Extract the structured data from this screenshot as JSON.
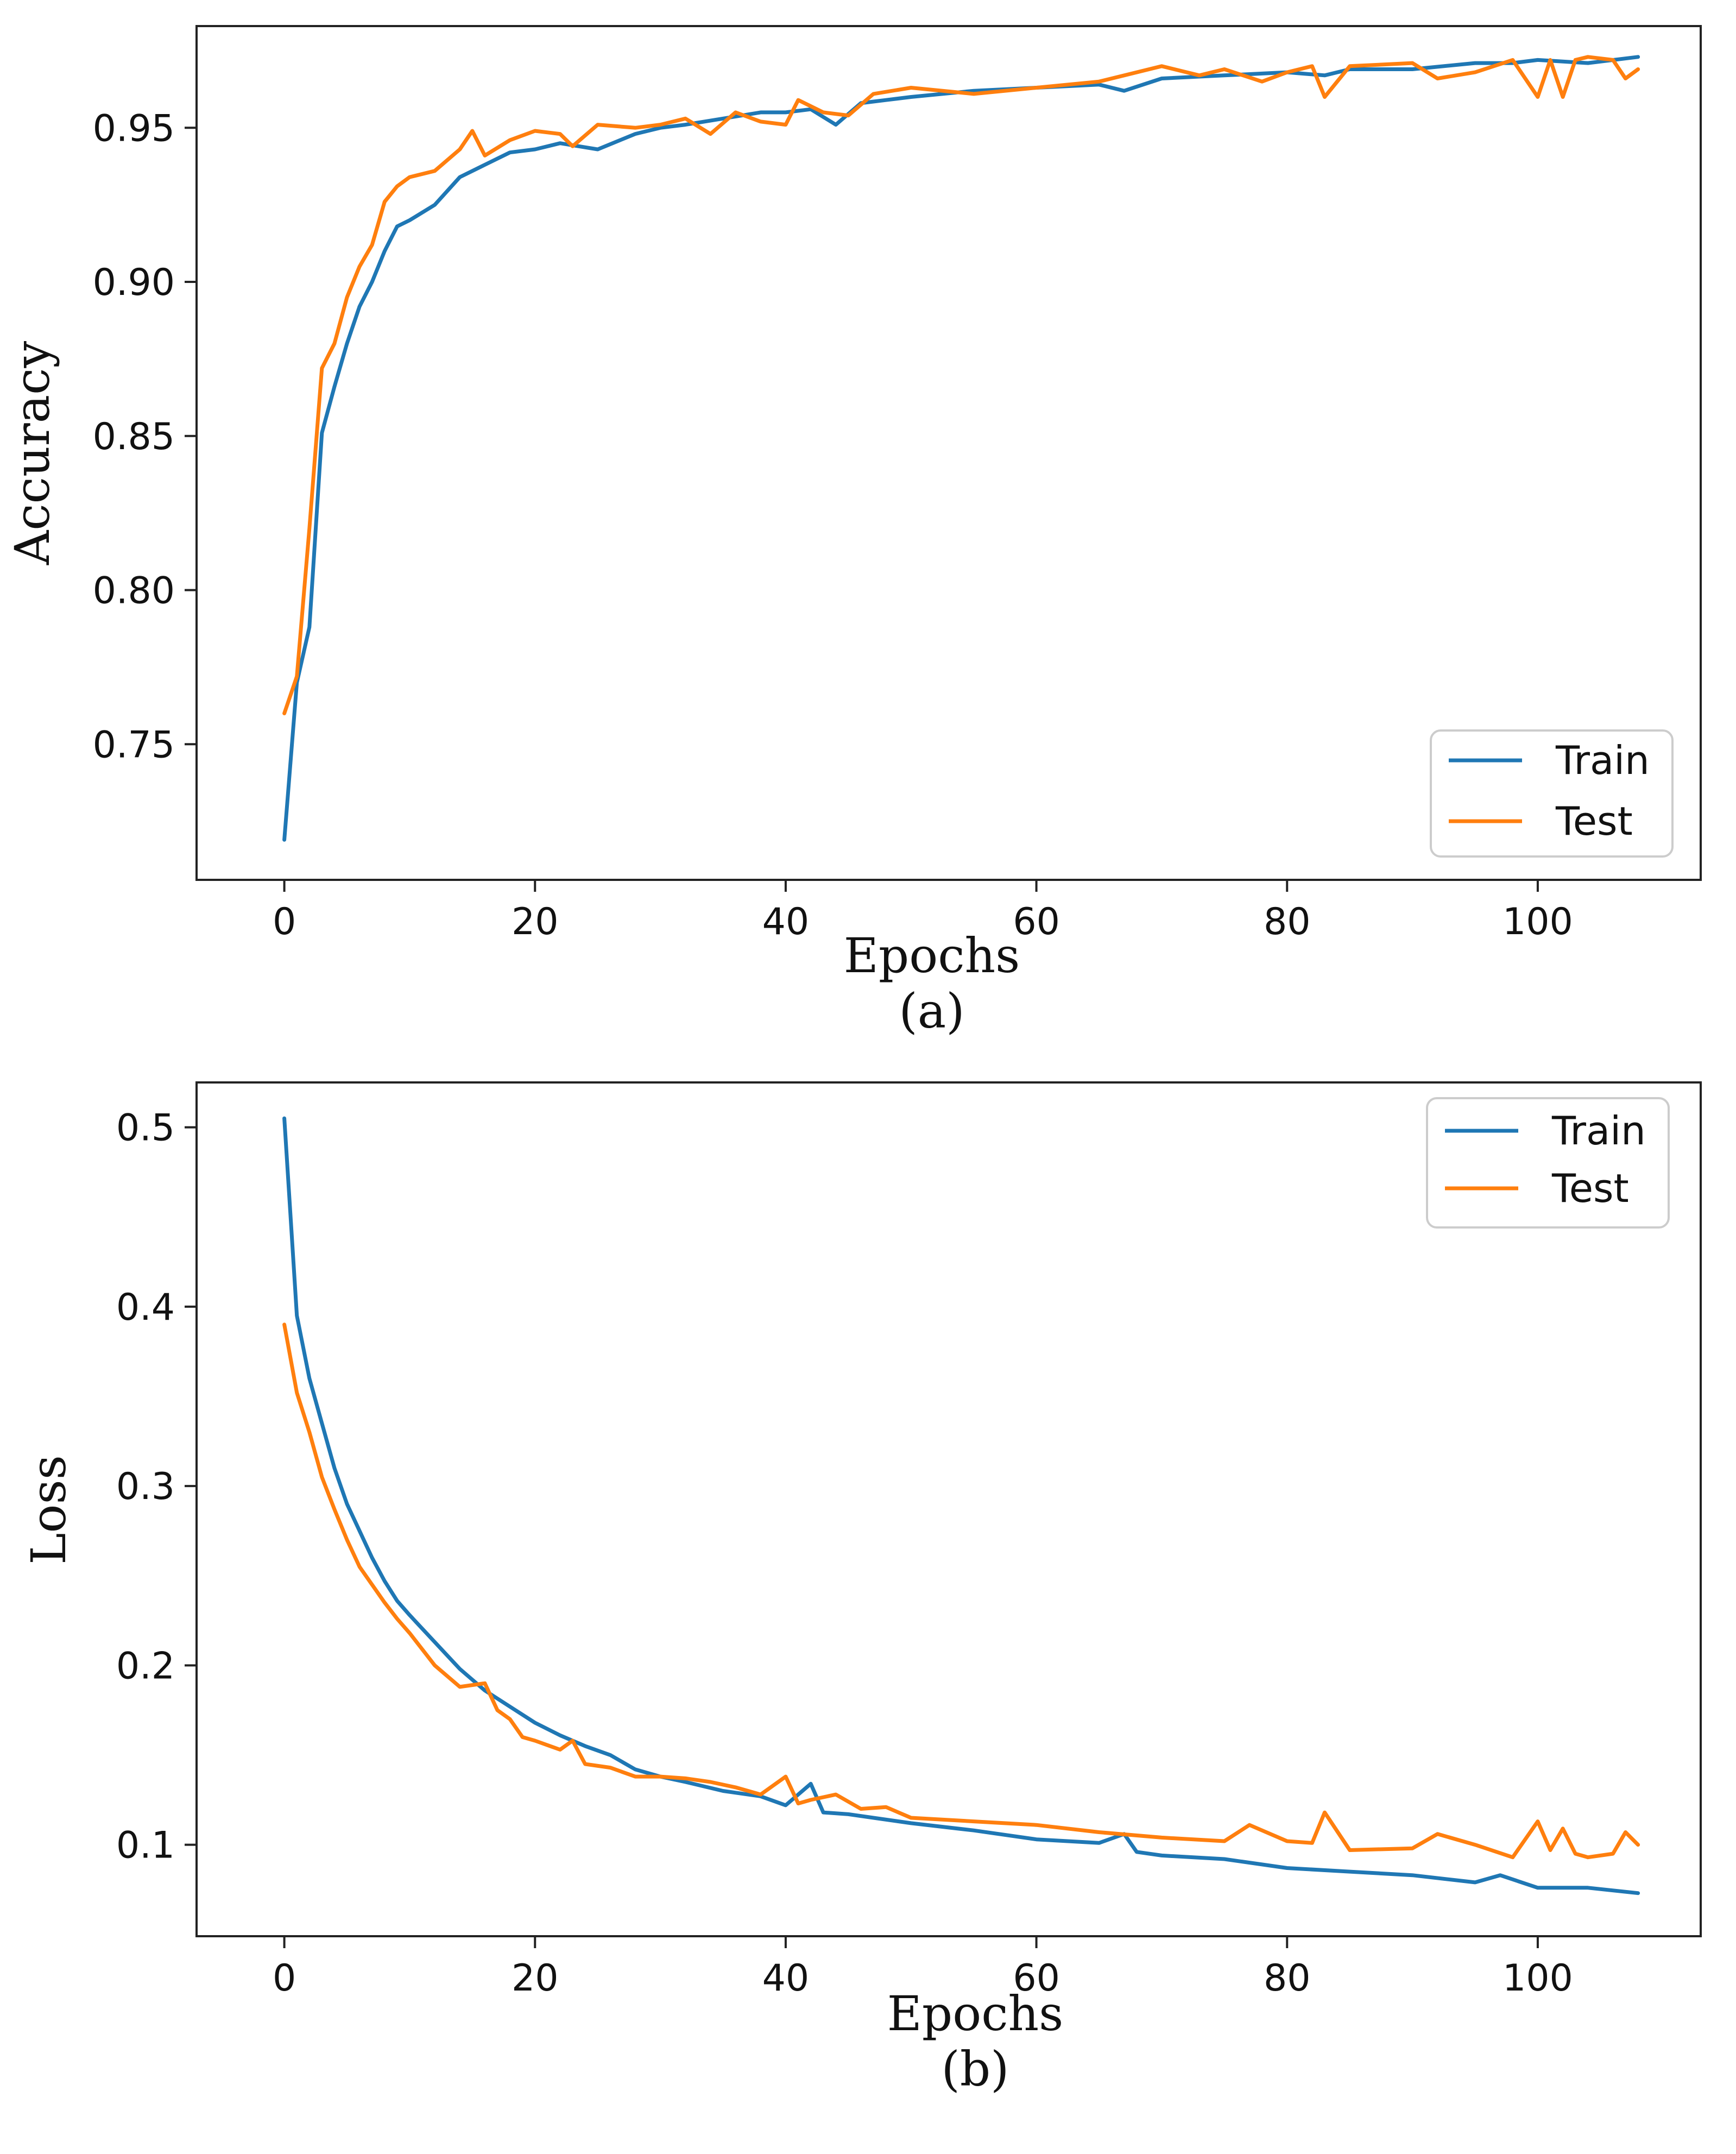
{
  "colors": {
    "train": "#1f77b4",
    "test": "#ff7f0e"
  },
  "chart_data": [
    {
      "type": "line",
      "panel": "a",
      "caption": "(a)",
      "title": "",
      "xlabel": "Epochs",
      "ylabel": "Accuracy",
      "xlim": [
        -7,
        113
      ],
      "ylim": [
        0.706,
        0.983
      ],
      "xticks": [
        0,
        20,
        40,
        60,
        80,
        100
      ],
      "xtick_labels": [
        "0",
        "20",
        "40",
        "60",
        "80",
        "100"
      ],
      "yticks": [
        0.75,
        0.8,
        0.85,
        0.9,
        0.95
      ],
      "ytick_labels": [
        "0.75",
        "0.80",
        "0.85",
        "0.90",
        "0.95"
      ],
      "legend_position": "bottom-right",
      "series": [
        {
          "name": "Train",
          "color_key": "train",
          "x": [
            0,
            1,
            2,
            3,
            4,
            5,
            6,
            7,
            8,
            9,
            10,
            12,
            14,
            16,
            18,
            20,
            22,
            25,
            28,
            30,
            32,
            35,
            38,
            40,
            42,
            44,
            46,
            48,
            50,
            55,
            60,
            65,
            67,
            70,
            75,
            80,
            83,
            85,
            90,
            95,
            98,
            100,
            104,
            108
          ],
          "values": [
            0.719,
            0.77,
            0.788,
            0.851,
            0.866,
            0.88,
            0.892,
            0.9,
            0.91,
            0.918,
            0.92,
            0.925,
            0.934,
            0.938,
            0.942,
            0.943,
            0.945,
            0.943,
            0.948,
            0.95,
            0.951,
            0.953,
            0.955,
            0.955,
            0.956,
            0.951,
            0.958,
            0.959,
            0.96,
            0.962,
            0.963,
            0.964,
            0.962,
            0.966,
            0.967,
            0.968,
            0.967,
            0.969,
            0.969,
            0.971,
            0.971,
            0.972,
            0.971,
            0.973
          ]
        },
        {
          "name": "Test",
          "color_key": "test",
          "x": [
            0,
            1,
            2,
            3,
            4,
            5,
            6,
            7,
            8,
            9,
            10,
            12,
            14,
            15,
            16,
            18,
            20,
            22,
            23,
            25,
            28,
            30,
            32,
            34,
            36,
            38,
            40,
            41,
            43,
            45,
            47,
            50,
            55,
            60,
            65,
            70,
            73,
            75,
            78,
            80,
            82,
            83,
            85,
            90,
            92,
            95,
            98,
            100,
            101,
            102,
            103,
            104,
            106,
            107,
            108
          ],
          "values": [
            0.76,
            0.772,
            0.82,
            0.872,
            0.88,
            0.895,
            0.905,
            0.912,
            0.926,
            0.931,
            0.934,
            0.936,
            0.943,
            0.949,
            0.941,
            0.946,
            0.949,
            0.948,
            0.944,
            0.951,
            0.95,
            0.951,
            0.953,
            0.948,
            0.955,
            0.952,
            0.951,
            0.959,
            0.955,
            0.954,
            0.961,
            0.963,
            0.961,
            0.963,
            0.965,
            0.97,
            0.967,
            0.969,
            0.965,
            0.968,
            0.97,
            0.96,
            0.97,
            0.971,
            0.966,
            0.968,
            0.972,
            0.96,
            0.972,
            0.96,
            0.972,
            0.973,
            0.972,
            0.966,
            0.969
          ]
        }
      ]
    },
    {
      "type": "line",
      "panel": "b",
      "caption": "(b)",
      "title": "",
      "xlabel": "Epochs",
      "ylabel": "Loss",
      "xlim": [
        -7,
        113
      ],
      "ylim": [
        0.049,
        0.525
      ],
      "xticks": [
        0,
        20,
        40,
        60,
        80,
        100
      ],
      "xtick_labels": [
        "0",
        "20",
        "40",
        "60",
        "80",
        "100"
      ],
      "yticks": [
        0.1,
        0.2,
        0.3,
        0.4,
        0.5
      ],
      "ytick_labels": [
        "0.1",
        "0.2",
        "0.3",
        "0.4",
        "0.5"
      ],
      "legend_position": "top-right",
      "series": [
        {
          "name": "Train",
          "color_key": "train",
          "x": [
            0,
            1,
            2,
            3,
            4,
            5,
            6,
            7,
            8,
            9,
            10,
            12,
            14,
            16,
            18,
            20,
            22,
            24,
            26,
            28,
            30,
            32,
            35,
            38,
            40,
            42,
            43,
            45,
            47,
            50,
            55,
            60,
            65,
            67,
            68,
            70,
            75,
            78,
            80,
            85,
            90,
            95,
            97,
            100,
            104,
            108
          ],
          "values": [
            0.505,
            0.395,
            0.36,
            0.335,
            0.31,
            0.29,
            0.275,
            0.26,
            0.247,
            0.236,
            0.228,
            0.213,
            0.198,
            0.186,
            0.177,
            0.168,
            0.161,
            0.155,
            0.15,
            0.142,
            0.138,
            0.135,
            0.13,
            0.127,
            0.122,
            0.134,
            0.118,
            0.117,
            0.115,
            0.112,
            0.108,
            0.103,
            0.101,
            0.106,
            0.096,
            0.094,
            0.092,
            0.089,
            0.087,
            0.085,
            0.083,
            0.079,
            0.083,
            0.076,
            0.076,
            0.073
          ]
        },
        {
          "name": "Test",
          "color_key": "test",
          "x": [
            0,
            1,
            2,
            3,
            4,
            5,
            6,
            7,
            8,
            9,
            10,
            12,
            14,
            16,
            17,
            18,
            19,
            20,
            22,
            23,
            24,
            26,
            28,
            30,
            32,
            34,
            36,
            38,
            40,
            41,
            42,
            44,
            46,
            48,
            50,
            55,
            60,
            65,
            70,
            75,
            77,
            80,
            82,
            83,
            85,
            90,
            92,
            95,
            98,
            100,
            101,
            102,
            103,
            104,
            106,
            107,
            108
          ],
          "values": [
            0.39,
            0.352,
            0.33,
            0.305,
            0.287,
            0.27,
            0.255,
            0.245,
            0.235,
            0.226,
            0.218,
            0.2,
            0.188,
            0.19,
            0.175,
            0.17,
            0.16,
            0.158,
            0.153,
            0.158,
            0.145,
            0.143,
            0.138,
            0.138,
            0.137,
            0.135,
            0.132,
            0.128,
            0.138,
            0.123,
            0.125,
            0.128,
            0.12,
            0.121,
            0.115,
            0.113,
            0.111,
            0.107,
            0.104,
            0.102,
            0.111,
            0.102,
            0.101,
            0.118,
            0.097,
            0.098,
            0.106,
            0.1,
            0.093,
            0.113,
            0.097,
            0.109,
            0.095,
            0.093,
            0.095,
            0.107,
            0.1
          ]
        }
      ]
    }
  ]
}
